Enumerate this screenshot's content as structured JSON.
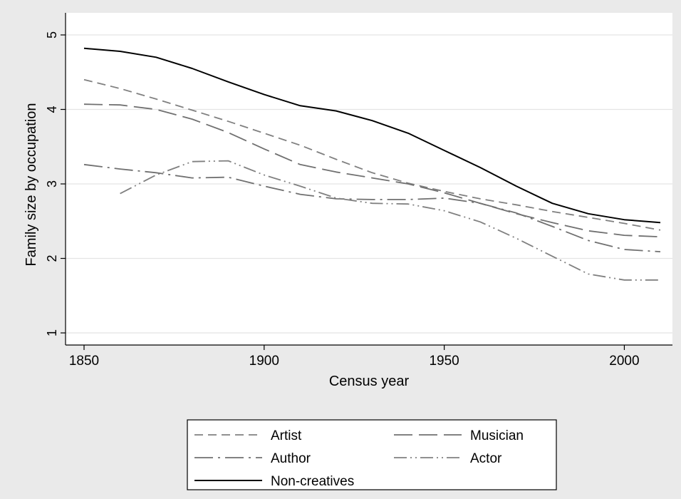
{
  "chart_data": {
    "type": "line",
    "xlabel": "Census year",
    "ylabel": "Family size by occupation",
    "xlim": [
      1850,
      2010
    ],
    "ylim": [
      1,
      5
    ],
    "x_ticks": [
      1850,
      1900,
      1950,
      2000
    ],
    "y_ticks": [
      1,
      2,
      3,
      4,
      5
    ],
    "grid": "horizontal",
    "legend_position": "bottom",
    "series": [
      {
        "name": "Artist",
        "style": "dashed",
        "color": "#808080",
        "points": [
          [
            1850,
            4.4
          ],
          [
            1860,
            4.28
          ],
          [
            1870,
            4.14
          ],
          [
            1880,
            3.99
          ],
          [
            1890,
            3.84
          ],
          [
            1900,
            3.68
          ],
          [
            1910,
            3.52
          ],
          [
            1920,
            3.33
          ],
          [
            1930,
            3.15
          ],
          [
            1940,
            3.01
          ],
          [
            1950,
            2.9
          ],
          [
            1960,
            2.8
          ],
          [
            1970,
            2.72
          ],
          [
            1980,
            2.63
          ],
          [
            1990,
            2.55
          ],
          [
            2000,
            2.47
          ],
          [
            2010,
            2.38
          ]
        ]
      },
      {
        "name": "Musician",
        "style": "longdash",
        "color": "#707070",
        "points": [
          [
            1850,
            4.07
          ],
          [
            1860,
            4.06
          ],
          [
            1870,
            4.0
          ],
          [
            1880,
            3.87
          ],
          [
            1890,
            3.69
          ],
          [
            1900,
            3.47
          ],
          [
            1910,
            3.26
          ],
          [
            1920,
            3.16
          ],
          [
            1930,
            3.08
          ],
          [
            1940,
            3.0
          ],
          [
            1950,
            2.88
          ],
          [
            1960,
            2.74
          ],
          [
            1970,
            2.6
          ],
          [
            1980,
            2.48
          ],
          [
            1990,
            2.37
          ],
          [
            2000,
            2.31
          ],
          [
            2010,
            2.29
          ]
        ]
      },
      {
        "name": "Author",
        "style": "dashdot",
        "color": "#707070",
        "points": [
          [
            1850,
            3.26
          ],
          [
            1860,
            3.2
          ],
          [
            1870,
            3.15
          ],
          [
            1880,
            3.08
          ],
          [
            1890,
            3.09
          ],
          [
            1900,
            2.97
          ],
          [
            1910,
            2.86
          ],
          [
            1920,
            2.8
          ],
          [
            1930,
            2.79
          ],
          [
            1940,
            2.79
          ],
          [
            1950,
            2.81
          ],
          [
            1960,
            2.74
          ],
          [
            1970,
            2.61
          ],
          [
            1980,
            2.43
          ],
          [
            1990,
            2.24
          ],
          [
            2000,
            2.12
          ],
          [
            2010,
            2.09
          ]
        ]
      },
      {
        "name": "Actor",
        "style": "dashdotdot",
        "color": "#808080",
        "points": [
          [
            1860,
            2.87
          ],
          [
            1870,
            3.12
          ],
          [
            1880,
            3.3
          ],
          [
            1890,
            3.31
          ],
          [
            1900,
            3.12
          ],
          [
            1910,
            2.97
          ],
          [
            1920,
            2.81
          ],
          [
            1930,
            2.74
          ],
          [
            1940,
            2.73
          ],
          [
            1950,
            2.64
          ],
          [
            1960,
            2.49
          ],
          [
            1970,
            2.27
          ],
          [
            1980,
            2.03
          ],
          [
            1990,
            1.79
          ],
          [
            2000,
            1.71
          ],
          [
            2010,
            1.71
          ]
        ]
      },
      {
        "name": "Non-creatives",
        "style": "solid",
        "color": "#000000",
        "points": [
          [
            1850,
            4.82
          ],
          [
            1860,
            4.78
          ],
          [
            1870,
            4.7
          ],
          [
            1880,
            4.55
          ],
          [
            1890,
            4.37
          ],
          [
            1900,
            4.2
          ],
          [
            1910,
            4.05
          ],
          [
            1920,
            3.98
          ],
          [
            1930,
            3.85
          ],
          [
            1940,
            3.68
          ],
          [
            1950,
            3.45
          ],
          [
            1960,
            3.22
          ],
          [
            1970,
            2.97
          ],
          [
            1980,
            2.74
          ],
          [
            1990,
            2.6
          ],
          [
            2000,
            2.52
          ],
          [
            2010,
            2.48
          ]
        ]
      }
    ]
  }
}
